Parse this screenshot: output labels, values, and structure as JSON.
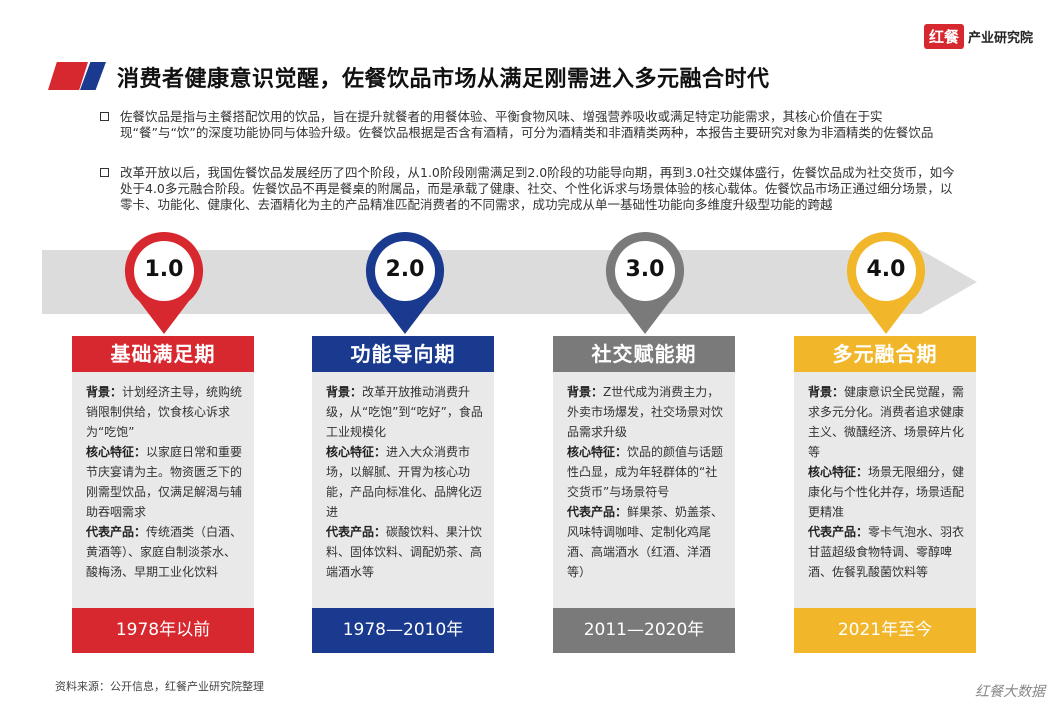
{
  "logo": {
    "mark": "红餐",
    "text": "产业研究院"
  },
  "title": "消费者健康意识觉醒，佐餐饮品市场从满足刚需进入多元融合时代",
  "intro": [
    "佐餐饮品是指与主餐搭配饮用的饮品，旨在提升就餐者的用餐体验、平衡食物风味、增强营养吸收或满足特定功能需求，其核心价值在于实现“餐”与“饮”的深度功能协同与体验升级。佐餐饮品根据是否含有酒精，可分为酒精类和非酒精类两种，本报告主要研究对象为非酒精类的佐餐饮品",
    "改革开放以后，我国佐餐饮品发展经历了四个阶段，从1.0阶段刚需满足到2.0阶段的功能导向期，再到3.0社交媒体盛行，佐餐饮品成为社交货币，如今处于4.0多元融合阶段。佐餐饮品不再是餐桌的附属品，而是承载了健康、社交、个性化诉求与场景体验的核心载体。佐餐饮品市场正通过细分场景，以零卡、功能化、健康化、去酒精化为主的产品精准匹配消费者的不同需求，成功完成从单一基础性功能向多维度升级型功能的跨越"
  ],
  "colors": {
    "red": "#d7282f",
    "blue": "#1a3a8f",
    "gray": "#7a7a7a",
    "yellow": "#f2b62a"
  },
  "stages": [
    {
      "num": "1.0",
      "name": "基础满足期",
      "color": "#d7282f",
      "bg_label": "背景：",
      "bg": "计划经济主导，统购统销限制供给，饮食核心诉求为“吃饱”",
      "core_label": "核心特征：",
      "core": "以家庭日常和重要节庆宴请为主。物资匮乏下的刚需型饮品，仅满足解渴与辅助吞咽需求",
      "prod_label": "代表产品：",
      "prod": "传统酒类（白酒、黄酒等）、家庭自制淡茶水、酸梅汤、早期工业化饮料",
      "period": "1978年以前"
    },
    {
      "num": "2.0",
      "name": "功能导向期",
      "color": "#1a3a8f",
      "bg_label": "背景：",
      "bg": "改革开放推动消费升级，从“吃饱”到“吃好”，食品工业规模化",
      "core_label": "核心特征：",
      "core": "进入大众消费市场，以解腻、开胃为核心功能，产品向标准化、品牌化迈进",
      "prod_label": "代表产品：",
      "prod": "碳酸饮料、果汁饮料、固体饮料、调配奶茶、高端酒水等",
      "period": "1978—2010年"
    },
    {
      "num": "3.0",
      "name": "社交赋能期",
      "color": "#7a7a7a",
      "bg_label": "背景：",
      "bg": "Z世代成为消费主力，外卖市场爆发，社交场景对饮品需求升级",
      "core_label": "核心特征：",
      "core": "饮品的颜值与话题性凸显，成为年轻群体的“社交货币”与场景符号",
      "prod_label": "代表产品：",
      "prod": "鲜果茶、奶盖茶、风味特调咖啡、定制化鸡尾酒、高端酒水（红酒、洋酒等）",
      "period": "2011—2020年"
    },
    {
      "num": "4.0",
      "name": "多元融合期",
      "color": "#f2b62a",
      "bg_label": "背景：",
      "bg": "健康意识全民觉醒，需求多元分化。消费者追求健康主义、微醺经济、场景碎片化等",
      "core_label": "核心特征：",
      "core": "场景无限细分，健康化与个性化并存，场景适配更精准",
      "prod_label": "代表产品：",
      "prod": "零卡气泡水、羽衣甘蓝超级食物特调、零醇啤酒、佐餐乳酸菌饮料等",
      "period": "2021年至今"
    }
  ],
  "source": "资料来源：公开信息，红餐产业研究院整理",
  "watermark": "红餐大数据"
}
